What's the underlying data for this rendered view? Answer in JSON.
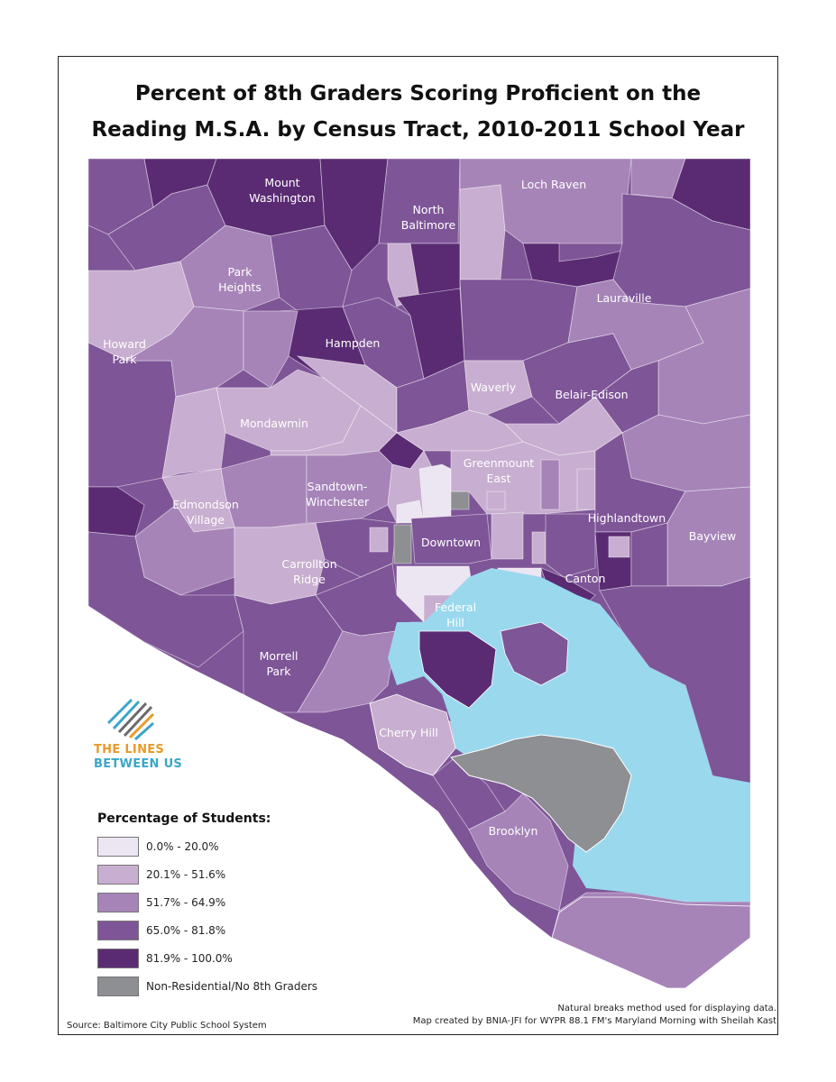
{
  "title": {
    "line1": "Percent of 8th Graders Scoring Proficient on the",
    "line2": "Reading M.S.A. by Census Tract, 2010-2011 School Year"
  },
  "colors": {
    "class1": "#ece5f2",
    "class2": "#c8aed0",
    "class3": "#a684b8",
    "class4": "#7e5597",
    "class5": "#5a2b72",
    "nonres": "#8e8f92",
    "water": "#9ad8ee",
    "outline": "#ffffff"
  },
  "neighborhoods": [
    {
      "id": "mount-washington",
      "lines": [
        "Mount",
        "Washington"
      ]
    },
    {
      "id": "north-baltimore",
      "lines": [
        "North",
        "Baltimore"
      ]
    },
    {
      "id": "loch-raven",
      "lines": [
        "Loch Raven"
      ]
    },
    {
      "id": "park-heights",
      "lines": [
        "Park",
        "Heights"
      ]
    },
    {
      "id": "lauraville",
      "lines": [
        "Lauraville"
      ]
    },
    {
      "id": "howard-park",
      "lines": [
        "Howard",
        "Park"
      ]
    },
    {
      "id": "hampden",
      "lines": [
        "Hampden"
      ]
    },
    {
      "id": "waverly",
      "lines": [
        "Waverly"
      ]
    },
    {
      "id": "belair-edison",
      "lines": [
        "Belair-Edison"
      ]
    },
    {
      "id": "mondawmin",
      "lines": [
        "Mondawmin"
      ]
    },
    {
      "id": "greenmount-east",
      "lines": [
        "Greenmount",
        "East"
      ]
    },
    {
      "id": "sandtown-winchester",
      "lines": [
        "Sandtown-",
        "Winchester"
      ]
    },
    {
      "id": "edmondson-village",
      "lines": [
        "Edmondson",
        "Village"
      ]
    },
    {
      "id": "highlandtown",
      "lines": [
        "Highlandtown"
      ]
    },
    {
      "id": "bayview",
      "lines": [
        "Bayview"
      ]
    },
    {
      "id": "downtown",
      "lines": [
        "Downtown"
      ]
    },
    {
      "id": "carrollton-ridge",
      "lines": [
        "Carrollton",
        "Ridge"
      ]
    },
    {
      "id": "canton",
      "lines": [
        "Canton"
      ]
    },
    {
      "id": "federal-hill",
      "lines": [
        "Federal",
        "Hill"
      ]
    },
    {
      "id": "morrell-park",
      "lines": [
        "Morrell",
        "Park"
      ]
    },
    {
      "id": "cherry-hill",
      "lines": [
        "Cherry Hill"
      ]
    },
    {
      "id": "brooklyn",
      "lines": [
        "Brooklyn"
      ]
    }
  ],
  "logo": {
    "line1": "THE LINES",
    "line2": "BETWEEN US"
  },
  "legend": {
    "title": "Percentage of Students:",
    "items": [
      {
        "label": "0.0% - 20.0%",
        "color": "#ece5f2"
      },
      {
        "label": "20.1% - 51.6%",
        "color": "#c8aed0"
      },
      {
        "label": "51.7% - 64.9%",
        "color": "#a684b8"
      },
      {
        "label": "65.0% - 81.8%",
        "color": "#7e5597"
      },
      {
        "label": "81.9% - 100.0%",
        "color": "#5a2b72"
      },
      {
        "label": "Non-Residential/No 8th Graders",
        "color": "#8e8f92"
      }
    ]
  },
  "notes": {
    "line1": "Natural breaks method used for displaying data.",
    "line2": "Map created by BNIA-JFI for WYPR 88.1 FM's Maryland Morning with Sheilah Kast"
  },
  "source": "Source: Baltimore City Public School System"
}
